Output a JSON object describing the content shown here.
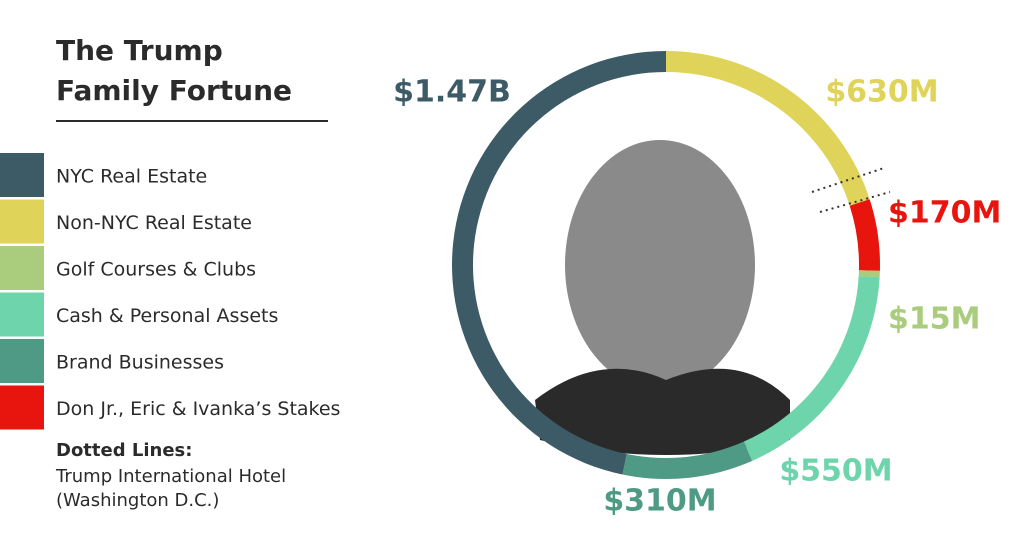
{
  "chart_data": {
    "type": "donut",
    "title": [
      "The Trump",
      "Family Fortune"
    ],
    "categories": [
      "NYC Real Estate",
      "Non-NYC Real Estate",
      "Golf Courses & Clubs",
      "Cash & Personal Assets",
      "Brand Businesses",
      "Don Jr., Eric & Ivanka’s Stakes"
    ],
    "values": [
      1470,
      630,
      15,
      550,
      310,
      170
    ],
    "value_labels": [
      "$1.47B",
      "$630M",
      "$15M",
      "$550M",
      "$310M",
      "$170M"
    ],
    "colors": [
      "#3d5b66",
      "#dfd35a",
      "#a9cc7d",
      "#6dd4ab",
      "#4f9a84",
      "#e8150f"
    ],
    "note_title": "Dotted Lines:",
    "note": [
      "Trump International Hotel",
      "(Washington D.C.)"
    ]
  }
}
